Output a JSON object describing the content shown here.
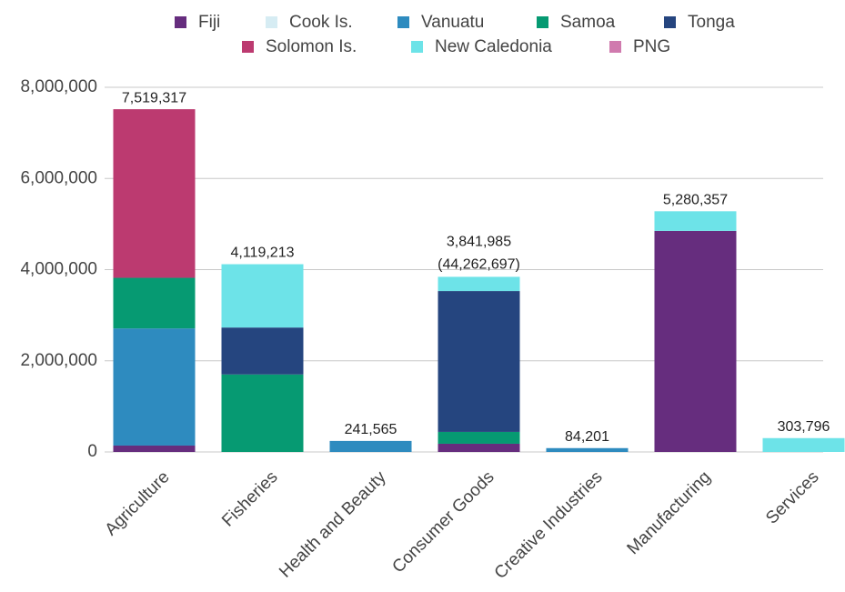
{
  "chart_data": {
    "type": "stacked_bar",
    "categories": [
      "Agriculture",
      "Fisheries",
      "Health and Beauty",
      "Consumer Goods",
      "Creative Industries",
      "Manufacturing",
      "Services"
    ],
    "series": [
      {
        "name": "Fiji",
        "color": "#662d7e",
        "values": [
          140000,
          null,
          null,
          180000,
          null,
          4850000,
          null
        ]
      },
      {
        "name": "Cook Is.",
        "color": "#d6ecf3",
        "values": [
          null,
          null,
          null,
          null,
          null,
          null,
          null
        ]
      },
      {
        "name": "Vanuatu",
        "color": "#2e8bbf",
        "values": [
          2570000,
          null,
          241565,
          null,
          84201,
          null,
          null
        ]
      },
      {
        "name": "Samoa",
        "color": "#069a72",
        "values": [
          1110000,
          1700000,
          null,
          260000,
          null,
          null,
          null
        ]
      },
      {
        "name": "Tonga",
        "color": "#25457f",
        "values": [
          null,
          1030000,
          null,
          3090000,
          null,
          null,
          null
        ]
      },
      {
        "name": "Solomon Is.",
        "color": "#bc3a70",
        "values": [
          3699317,
          null,
          null,
          null,
          null,
          null,
          null
        ]
      },
      {
        "name": "New Caledonia",
        "color": "#6de3e8",
        "values": [
          null,
          1389213,
          null,
          311985,
          null,
          430357,
          303796
        ]
      },
      {
        "name": "PNG",
        "color": "#d07aae",
        "values": [
          null,
          null,
          null,
          null,
          null,
          null,
          null
        ]
      }
    ],
    "totals": [
      7519317,
      4119213,
      241565,
      3841985,
      84201,
      5280357,
      303796
    ],
    "total_labels": [
      "7,519,317",
      "4,119,213",
      "241,565",
      "3,841,985",
      "84,201",
      "5,280,357",
      "303,796"
    ],
    "annotation": "(44,262,697)",
    "ylim": [
      0,
      8000000
    ],
    "yticks": [
      0,
      {
        "value": 2000000,
        "label": "2,000,000"
      },
      {
        "value": 4000000,
        "label": "4,000,000"
      },
      {
        "value": 6000000,
        "label": "6,000,000"
      },
      {
        "value": 8000000,
        "label": "8,000,000"
      }
    ],
    "grid": true,
    "legend": "top"
  }
}
